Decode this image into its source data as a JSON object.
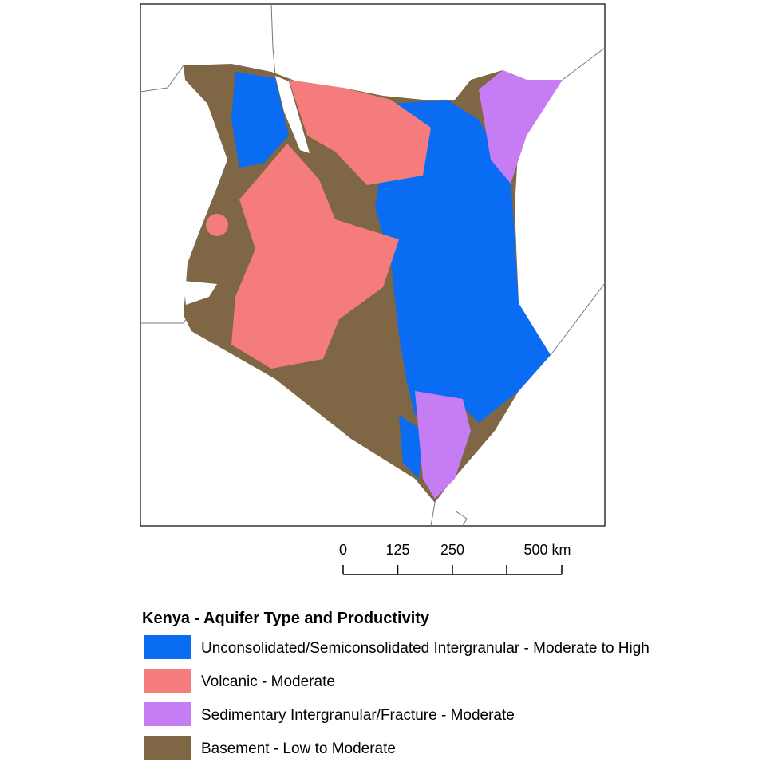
{
  "scale_bar": {
    "ticks": [
      0,
      125,
      250,
      {
        "value": 500,
        "label": "500 km"
      }
    ],
    "max": 500
  },
  "legend": {
    "title": "Kenya - Aquifer Type and Productivity",
    "items": [
      {
        "label": "Unconsolidated/Semiconsolidated Intergranular - Moderate to High",
        "color": "#0a6cf2"
      },
      {
        "label": "Volcanic - Moderate",
        "color": "#f47c7c"
      },
      {
        "label": "Sedimentary Intergranular/Fracture - Moderate",
        "color": "#c67cf2"
      },
      {
        "label": "Basement - Low to Moderate",
        "color": "#7f6645"
      }
    ]
  }
}
